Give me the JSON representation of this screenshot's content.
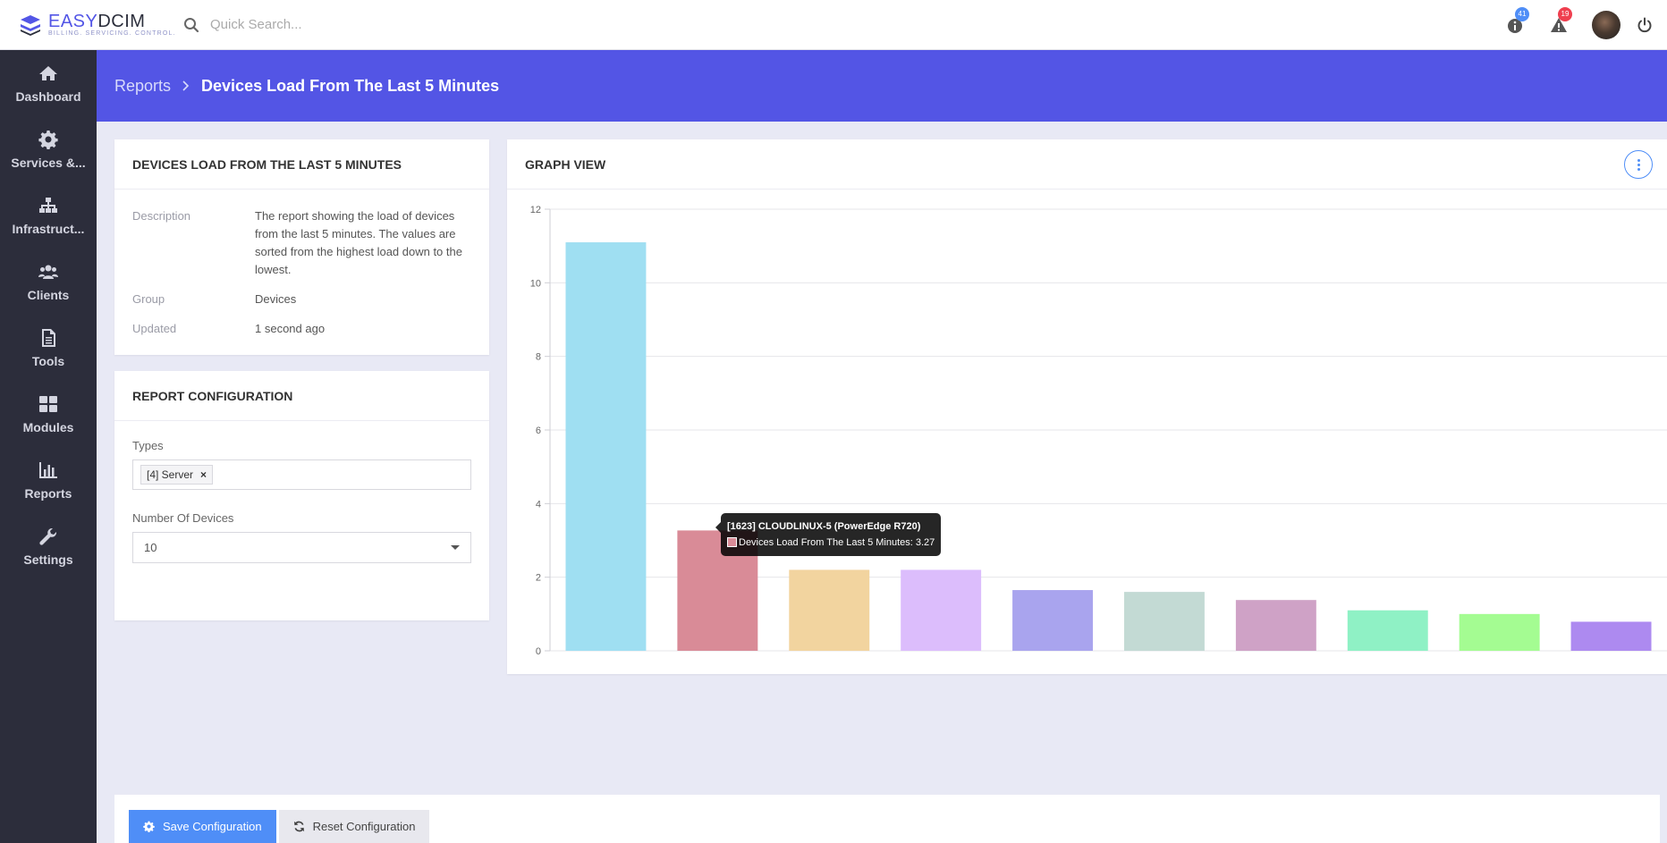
{
  "brand": {
    "name_a": "EASY",
    "name_b": "DCIM",
    "tagline": "BILLING. SERVICING. CONTROL."
  },
  "search": {
    "placeholder": "Quick Search..."
  },
  "topbar": {
    "info_count": "41",
    "alert_count": "19"
  },
  "sidebar": {
    "items": [
      {
        "label": "Dashboard",
        "icon": "home-icon"
      },
      {
        "label": "Services &...",
        "icon": "gear-icon"
      },
      {
        "label": "Infrastruct...",
        "icon": "sitemap-icon"
      },
      {
        "label": "Clients",
        "icon": "users-icon"
      },
      {
        "label": "Tools",
        "icon": "document-icon"
      },
      {
        "label": "Modules",
        "icon": "grid-icon"
      },
      {
        "label": "Reports",
        "icon": "bar-chart-icon"
      },
      {
        "label": "Settings",
        "icon": "wrench-icon"
      }
    ]
  },
  "breadcrumb": {
    "parent": "Reports",
    "current": "Devices Load From The Last 5 Minutes"
  },
  "info": {
    "title": "DEVICES LOAD FROM THE LAST 5 MINUTES",
    "rows": [
      {
        "key": "Description",
        "value": "The report showing the load of devices from the last 5 minutes. The values are sorted from the highest load down to the lowest."
      },
      {
        "key": "Group",
        "value": "Devices"
      },
      {
        "key": "Updated",
        "value": "1 second ago"
      }
    ]
  },
  "config": {
    "title": "REPORT CONFIGURATION",
    "types_label": "Types",
    "types_tag": "[4] Server",
    "types_tag_remove": "×",
    "count_label": "Number Of Devices",
    "count_value": "10"
  },
  "graph": {
    "title": "GRAPH VIEW"
  },
  "tooltip": {
    "title": "[1623] CLOUDLINUX-5 (PowerEdge R720)",
    "body": "Devices Load From The Last 5 Minutes: 3.27"
  },
  "chart_data": {
    "type": "bar",
    "title": "",
    "xlabel": "",
    "ylabel": "",
    "ylim": [
      0,
      12
    ],
    "yticks": [
      0,
      2,
      4,
      6,
      8,
      10,
      12
    ],
    "grid": true,
    "series": [
      {
        "name": "Devices Load From The Last 5 Minutes",
        "values": [
          11.1,
          3.27,
          2.2,
          2.2,
          1.65,
          1.6,
          1.38,
          1.1,
          1.0,
          0.79
        ],
        "colors": [
          "#9fdff2",
          "#d98b97",
          "#f2d49f",
          "#dcbdfc",
          "#a9a4ee",
          "#c3dad4",
          "#cfa2c6",
          "#8ff1c5",
          "#a4fc92",
          "#ad8af0"
        ]
      }
    ]
  },
  "footer": {
    "save_label": "Save Configuration",
    "reset_label": "Reset Configuration"
  }
}
